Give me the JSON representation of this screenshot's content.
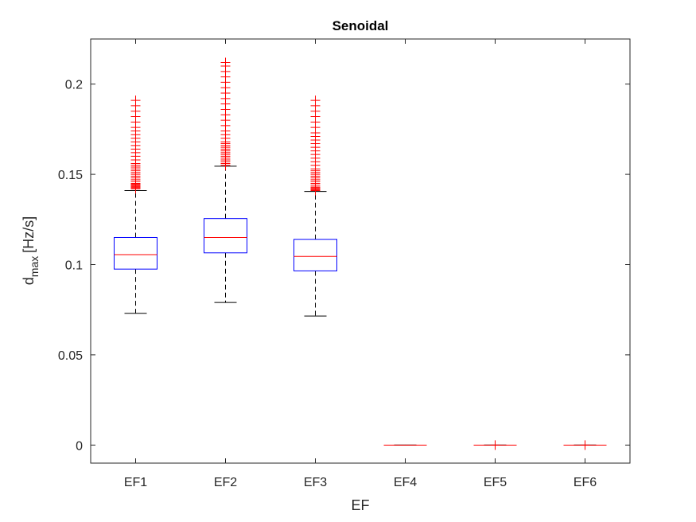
{
  "chart_data": {
    "type": "box",
    "title": "Senoidal",
    "xlabel": "EF",
    "ylabel": {
      "main": "d",
      "subscript": "max",
      "unit": "[Hz/s]"
    },
    "categories": [
      "EF1",
      "EF2",
      "EF3",
      "EF4",
      "EF5",
      "EF6"
    ],
    "ylim": [
      -0.01,
      0.225
    ],
    "yticks": [
      0,
      0.05,
      0.1,
      0.15,
      0.2
    ],
    "ytick_labels": [
      "0",
      "0.05",
      "0.1",
      "0.15",
      "0.2"
    ],
    "grid": false,
    "colors": {
      "box": "#0000ff",
      "median": "#ff0000",
      "whisker": "#000000",
      "outlier": "#ff0000",
      "axis": "#262626"
    },
    "boxes": [
      {
        "category": "EF1",
        "whisker_low": 0.073,
        "q1": 0.0975,
        "median": 0.1055,
        "q3": 0.115,
        "whisker_high": 0.141,
        "outliers": [
          0.142,
          0.1425,
          0.143,
          0.1435,
          0.144,
          0.1445,
          0.145,
          0.146,
          0.147,
          0.148,
          0.149,
          0.15,
          0.151,
          0.152,
          0.153,
          0.154,
          0.155,
          0.156,
          0.158,
          0.16,
          0.162,
          0.164,
          0.166,
          0.168,
          0.17,
          0.172,
          0.174,
          0.176,
          0.179,
          0.182,
          0.185,
          0.188,
          0.191
        ]
      },
      {
        "category": "EF2",
        "whisker_low": 0.079,
        "q1": 0.1065,
        "median": 0.115,
        "q3": 0.1255,
        "whisker_high": 0.1545,
        "outliers": [
          0.155,
          0.156,
          0.157,
          0.158,
          0.159,
          0.16,
          0.161,
          0.162,
          0.163,
          0.164,
          0.165,
          0.166,
          0.167,
          0.168,
          0.17,
          0.172,
          0.174,
          0.177,
          0.18,
          0.183,
          0.186,
          0.189,
          0.192,
          0.195,
          0.198,
          0.201,
          0.204,
          0.207,
          0.21,
          0.212
        ]
      },
      {
        "category": "EF3",
        "whisker_low": 0.0715,
        "q1": 0.0965,
        "median": 0.1045,
        "q3": 0.114,
        "whisker_high": 0.1405,
        "outliers": [
          0.141,
          0.1415,
          0.142,
          0.1425,
          0.143,
          0.144,
          0.145,
          0.146,
          0.147,
          0.148,
          0.149,
          0.15,
          0.151,
          0.152,
          0.153,
          0.155,
          0.157,
          0.159,
          0.161,
          0.163,
          0.165,
          0.167,
          0.169,
          0.171,
          0.173,
          0.176,
          0.179,
          0.182,
          0.185,
          0.188,
          0.191
        ]
      },
      {
        "category": "EF4",
        "whisker_low": 0,
        "q1": 0,
        "median": 0,
        "q3": 0,
        "whisker_high": 0,
        "outliers": []
      },
      {
        "category": "EF5",
        "whisker_low": 0,
        "q1": 0,
        "median": 0,
        "q3": 0,
        "whisker_high": 0,
        "outliers": [
          0
        ]
      },
      {
        "category": "EF6",
        "whisker_low": 0,
        "q1": 0,
        "median": 0,
        "q3": 0,
        "whisker_high": 0,
        "outliers": [
          0
        ]
      }
    ]
  }
}
